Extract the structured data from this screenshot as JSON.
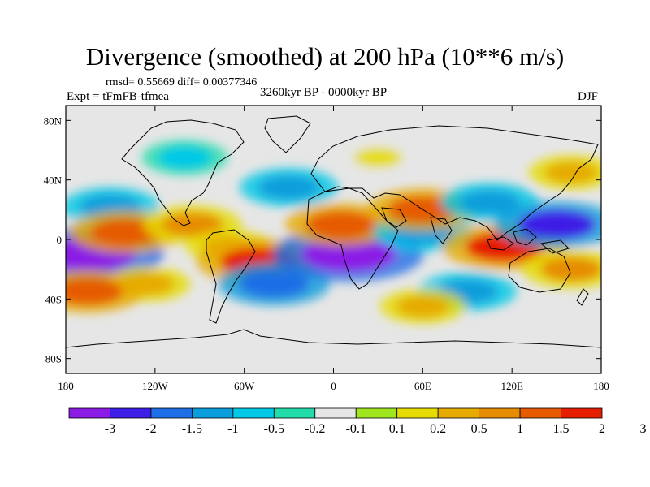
{
  "title": "Divergence (smoothed) at 200 hPa (10**6 m/s)",
  "stats_line": "rmsd= 0.55669 diff= 0.00377346",
  "experiment_label": "Expt = tFmFB-tfmea",
  "period_label": "3260kyr BP - 0000kyr BP",
  "season_label": "DJF",
  "map": {
    "projection": "cylindrical equidistant",
    "lon_range": [
      -180,
      180
    ],
    "lat_range": [
      -90,
      90
    ],
    "background_color": "#e6e6e6",
    "lon_ticks": [
      {
        "value": -180,
        "label": "180"
      },
      {
        "value": -120,
        "label": "120W"
      },
      {
        "value": -60,
        "label": "60W"
      },
      {
        "value": 0,
        "label": "0"
      },
      {
        "value": 60,
        "label": "60E"
      },
      {
        "value": 120,
        "label": "120E"
      },
      {
        "value": 180,
        "label": "180"
      }
    ],
    "lat_ticks": [
      {
        "value": 80,
        "label": "80N"
      },
      {
        "value": 40,
        "label": "40N"
      },
      {
        "value": 0,
        "label": "0"
      },
      {
        "value": -40,
        "label": "40S"
      },
      {
        "value": -80,
        "label": "80S"
      }
    ],
    "features": [
      {
        "lon": -165,
        "lat": -10,
        "value": -3.0
      },
      {
        "lon": -150,
        "lat": 22,
        "value": -1.0
      },
      {
        "lon": -140,
        "lat": 5,
        "value": 1.5
      },
      {
        "lon": -125,
        "lat": -30,
        "value": 0.5
      },
      {
        "lon": -165,
        "lat": -35,
        "value": 1.5
      },
      {
        "lon": -95,
        "lat": 10,
        "value": 1.0
      },
      {
        "lon": -70,
        "lat": -5,
        "value": 0.5
      },
      {
        "lon": -50,
        "lat": -15,
        "value": 2.0
      },
      {
        "lon": -40,
        "lat": -30,
        "value": -1.5
      },
      {
        "lon": -30,
        "lat": 35,
        "value": -1.0
      },
      {
        "lon": 10,
        "lat": -10,
        "value": -3.0
      },
      {
        "lon": 5,
        "lat": 10,
        "value": 1.5
      },
      {
        "lon": 60,
        "lat": 5,
        "value": -1.0
      },
      {
        "lon": 60,
        "lat": 20,
        "value": 1.5
      },
      {
        "lon": 115,
        "lat": -5,
        "value": 2.0
      },
      {
        "lon": 105,
        "lat": 25,
        "value": -1.0
      },
      {
        "lon": 150,
        "lat": 10,
        "value": -2.0
      },
      {
        "lon": 160,
        "lat": -20,
        "value": 1.0
      },
      {
        "lon": 90,
        "lat": -35,
        "value": -1.0
      },
      {
        "lon": 60,
        "lat": -45,
        "value": 0.5
      },
      {
        "lon": -100,
        "lat": 55,
        "value": -0.5
      },
      {
        "lon": 30,
        "lat": 55,
        "value": 0.2
      },
      {
        "lon": 160,
        "lat": 45,
        "value": 0.5
      }
    ]
  },
  "colorbar": {
    "colors": [
      "#8a1ce6",
      "#3c1ee6",
      "#1e6ee6",
      "#0a9edc",
      "#00c8e6",
      "#22dcaa",
      "#e6e6e6",
      "#a0e61e",
      "#e6dc00",
      "#e6aa00",
      "#e68c00",
      "#e65a00",
      "#e61e00"
    ],
    "labels": [
      "-3",
      "-2",
      "-1.5",
      "-1",
      "-0.5",
      "-0.2",
      "-0.1",
      "0.1",
      "0.2",
      "0.5",
      "1",
      "1.5",
      "2",
      "3"
    ]
  }
}
